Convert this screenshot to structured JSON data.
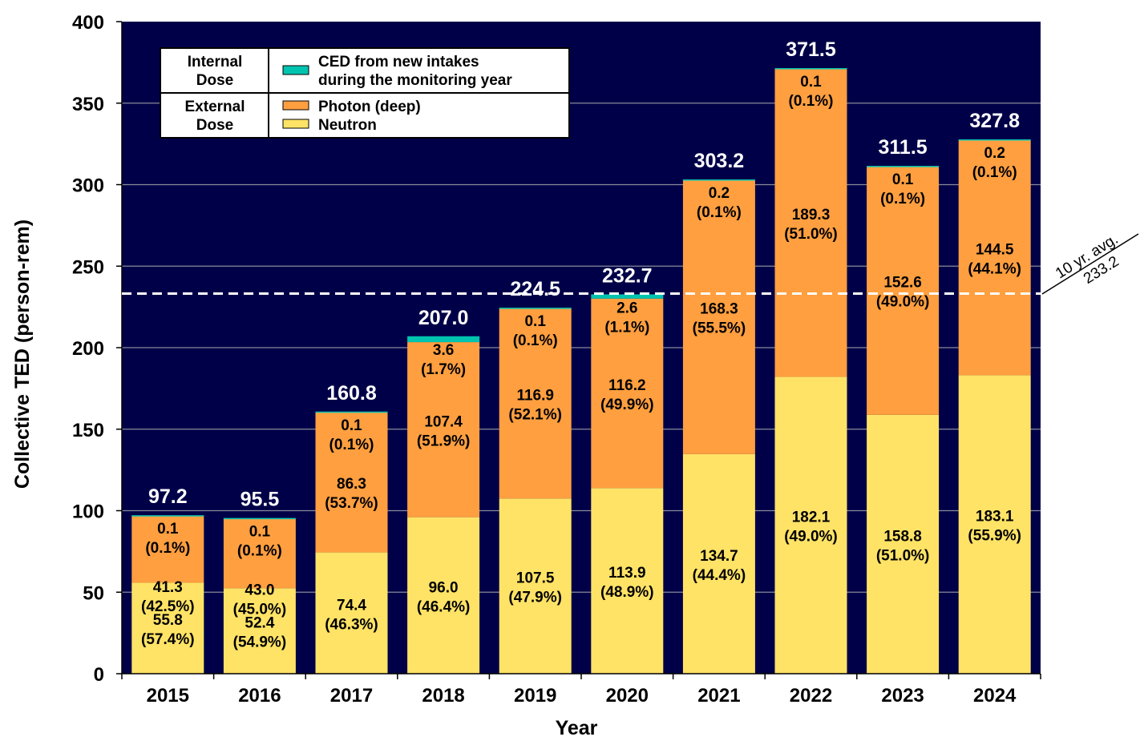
{
  "chart_data": {
    "type": "bar",
    "stacked": true,
    "title": "",
    "xlabel": "Year",
    "ylabel": "Collective TED (person-rem)",
    "ylim": [
      0,
      400
    ],
    "yticks": [
      0,
      50,
      100,
      150,
      200,
      250,
      300,
      350,
      400
    ],
    "grid": true,
    "legend_placement": "top-left",
    "categories": [
      "2015",
      "2016",
      "2017",
      "2018",
      "2019",
      "2020",
      "2021",
      "2022",
      "2023",
      "2024"
    ],
    "totals": [
      "97.2",
      "95.5",
      "160.8",
      "207.0",
      "224.5",
      "232.7",
      "303.2",
      "371.5",
      "311.5",
      "327.8"
    ],
    "series": [
      {
        "name": "Neutron",
        "key": "neutron",
        "color": "#FFE366",
        "values": [
          55.8,
          52.4,
          74.4,
          96.0,
          107.5,
          113.9,
          134.7,
          182.1,
          158.8,
          183.1
        ],
        "labels": [
          "55.8",
          "52.4",
          "74.4",
          "96.0",
          "107.5",
          "113.9",
          "134.7",
          "182.1",
          "158.8",
          "183.1"
        ],
        "percents": [
          "(57.4%)",
          "(54.9%)",
          "(46.3%)",
          "(46.4%)",
          "(47.9%)",
          "(48.9%)",
          "(44.4%)",
          "(49.0%)",
          "(51.0%)",
          "(55.9%)"
        ]
      },
      {
        "name": "Photon (deep)",
        "key": "photon",
        "color": "#FF9F40",
        "values": [
          41.3,
          43.0,
          86.3,
          107.4,
          116.9,
          116.2,
          168.3,
          189.3,
          152.6,
          144.5
        ],
        "labels": [
          "41.3",
          "43.0",
          "86.3",
          "107.4",
          "116.9",
          "116.2",
          "168.3",
          "189.3",
          "152.6",
          "144.5"
        ],
        "percents": [
          "(42.5%)",
          "(45.0%)",
          "(53.7%)",
          "(51.9%)",
          "(52.1%)",
          "(49.9%)",
          "(55.5%)",
          "(51.0%)",
          "(49.0%)",
          "(44.1%)"
        ]
      },
      {
        "name": "CED from new intakes during the monitoring year",
        "key": "ced",
        "color": "#00C4B0",
        "values": [
          0.1,
          0.1,
          0.1,
          3.6,
          0.1,
          2.6,
          0.2,
          0.1,
          0.1,
          0.2
        ],
        "labels": [
          "0.1",
          "0.1",
          "0.1",
          "3.6",
          "0.1",
          "2.6",
          "0.2",
          "0.1",
          "0.1",
          "0.2"
        ],
        "percents": [
          "(0.1%)",
          "(0.1%)",
          "(0.1%)",
          "(1.7%)",
          "(0.1%)",
          "(1.1%)",
          "(0.1%)",
          "(0.1%)",
          "(0.1%)",
          "(0.1%)"
        ]
      }
    ],
    "reference_line": {
      "value": 233.2,
      "label_line1": "10 yr. avg.",
      "label_line2": "233.2",
      "style": "dashed",
      "color": "#FFFFFF"
    },
    "plot_background": "#000048",
    "legend": {
      "internal_group": [
        "Internal",
        "Dose"
      ],
      "external_group": [
        "External",
        "Dose"
      ],
      "ced_line1": "CED from new intakes",
      "ced_line2": "during the monitoring year",
      "photon": "Photon (deep)",
      "neutron": "Neutron"
    }
  }
}
